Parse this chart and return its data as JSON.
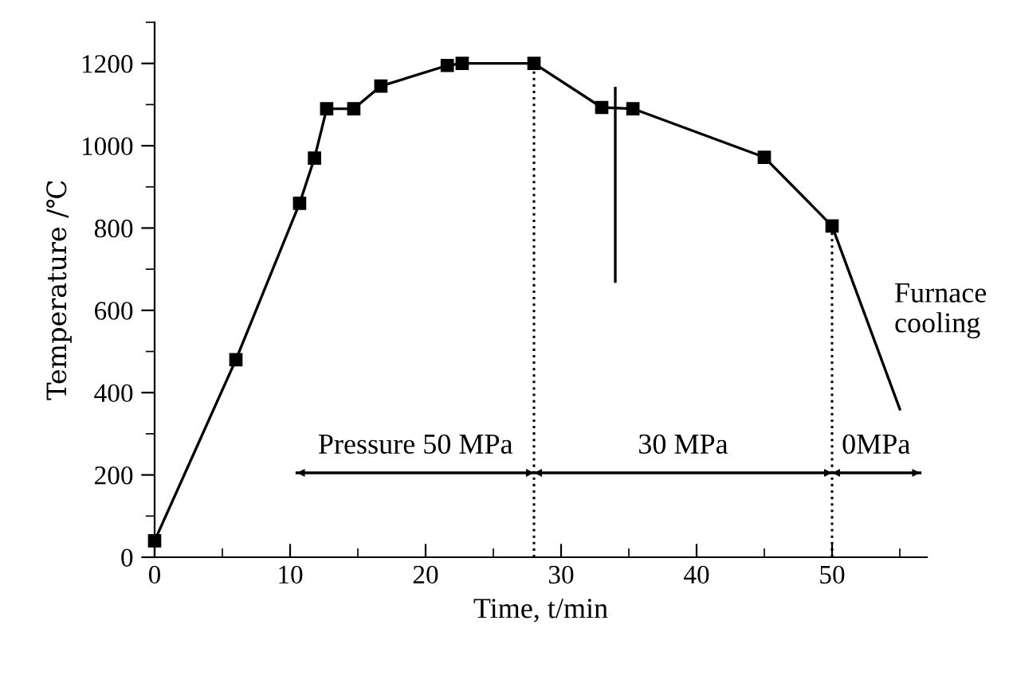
{
  "chart_data": {
    "type": "line",
    "xlabel": "Time, t/min",
    "ylabel": "Temperature /℃",
    "xlim": [
      0,
      57
    ],
    "ylim": [
      0,
      1300
    ],
    "xticks": [
      0,
      10,
      20,
      30,
      40,
      50
    ],
    "yticks": [
      0,
      200,
      400,
      600,
      800,
      1000,
      1200
    ],
    "grid": false,
    "legend": false,
    "series": [
      {
        "color": "#000000",
        "marker": "square",
        "line_style": "solid",
        "x": [
          0,
          6,
          10.7,
          11.8,
          12.7,
          14.7,
          16.7,
          21.6,
          22.7,
          28,
          33,
          35.3,
          45,
          50
        ],
        "values": [
          40,
          480,
          860,
          970,
          1090,
          1090,
          1145,
          1195,
          1200,
          1200,
          1093,
          1090,
          972,
          805
        ]
      },
      {
        "color": "#000000",
        "marker": "none",
        "line_style": "solid",
        "x": [
          50,
          55
        ],
        "values": [
          805,
          360
        ]
      },
      {
        "color": "#000000",
        "marker": "none",
        "line_style": "solid",
        "x": [
          34,
          34
        ],
        "values": [
          1140,
          670
        ]
      },
      {
        "color": "#000000",
        "marker": "none",
        "line_style": "solid",
        "x": [
          10.5,
          28,
          50,
          56.5
        ],
        "values": [
          205,
          205,
          205,
          205
        ]
      }
    ],
    "ref_lines": [
      {
        "axis": "x",
        "value": 28,
        "color": "#000000",
        "line_style": "dotted"
      },
      {
        "axis": "x",
        "value": 50,
        "color": "#000000",
        "line_style": "dotted"
      }
    ],
    "annotations": [
      {
        "text": "Pressure 50 MPa",
        "x": 19.25,
        "y": 205
      },
      {
        "text": "30 MPa",
        "x": 39,
        "y": 205
      },
      {
        "text": "0MPa",
        "x": 53.25,
        "y": 205
      },
      {
        "text": "Furnace\ncooling",
        "x": 52.3,
        "y": 600
      }
    ]
  }
}
